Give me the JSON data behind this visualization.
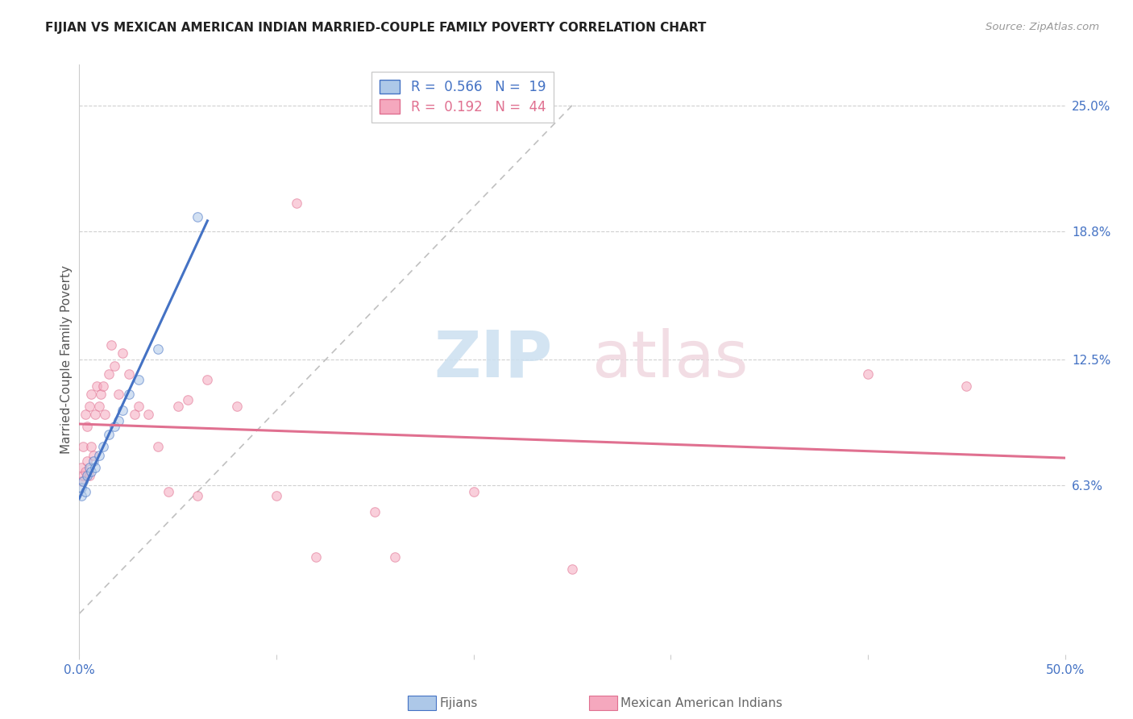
{
  "title": "FIJIAN VS MEXICAN AMERICAN INDIAN MARRIED-COUPLE FAMILY POVERTY CORRELATION CHART",
  "source": "Source: ZipAtlas.com",
  "ylabel_label": "Married-Couple Family Poverty",
  "xlim": [
    0.0,
    0.5
  ],
  "ylim": [
    -0.02,
    0.27
  ],
  "plot_ylim": [
    -0.02,
    0.27
  ],
  "fijian_color": "#adc8e8",
  "mexican_color": "#f5a8be",
  "fijian_line_color": "#4472c4",
  "mexican_line_color": "#e07090",
  "diag_line_color": "#c0c0c0",
  "legend_r_fijian": "0.566",
  "legend_n_fijian": "19",
  "legend_r_mexican": "0.192",
  "legend_n_mexican": "44",
  "fijian_x": [
    0.001,
    0.001,
    0.002,
    0.003,
    0.004,
    0.005,
    0.006,
    0.007,
    0.008,
    0.01,
    0.012,
    0.015,
    0.018,
    0.02,
    0.022,
    0.025,
    0.03,
    0.04,
    0.06
  ],
  "fijian_y": [
    0.058,
    0.062,
    0.065,
    0.06,
    0.068,
    0.072,
    0.07,
    0.075,
    0.072,
    0.078,
    0.082,
    0.088,
    0.092,
    0.095,
    0.1,
    0.108,
    0.115,
    0.13,
    0.195
  ],
  "mexican_x": [
    0.001,
    0.001,
    0.002,
    0.002,
    0.003,
    0.003,
    0.004,
    0.004,
    0.005,
    0.005,
    0.006,
    0.006,
    0.007,
    0.008,
    0.009,
    0.01,
    0.011,
    0.012,
    0.013,
    0.015,
    0.016,
    0.018,
    0.02,
    0.022,
    0.025,
    0.028,
    0.03,
    0.035,
    0.04,
    0.045,
    0.05,
    0.055,
    0.06,
    0.065,
    0.08,
    0.1,
    0.11,
    0.12,
    0.15,
    0.16,
    0.2,
    0.25,
    0.4,
    0.45
  ],
  "mexican_y": [
    0.065,
    0.072,
    0.068,
    0.082,
    0.07,
    0.098,
    0.075,
    0.092,
    0.068,
    0.102,
    0.082,
    0.108,
    0.078,
    0.098,
    0.112,
    0.102,
    0.108,
    0.112,
    0.098,
    0.118,
    0.132,
    0.122,
    0.108,
    0.128,
    0.118,
    0.098,
    0.102,
    0.098,
    0.082,
    0.06,
    0.102,
    0.105,
    0.058,
    0.115,
    0.102,
    0.058,
    0.202,
    0.028,
    0.05,
    0.028,
    0.06,
    0.022,
    0.118,
    0.112
  ],
  "background_color": "#ffffff",
  "dot_size": 70,
  "dot_alpha": 0.55,
  "dot_linewidth": 0.8,
  "ytick_vals": [
    0.063,
    0.125,
    0.188,
    0.25
  ],
  "ytick_labels": [
    "6.3%",
    "12.5%",
    "18.8%",
    "25.0%"
  ]
}
